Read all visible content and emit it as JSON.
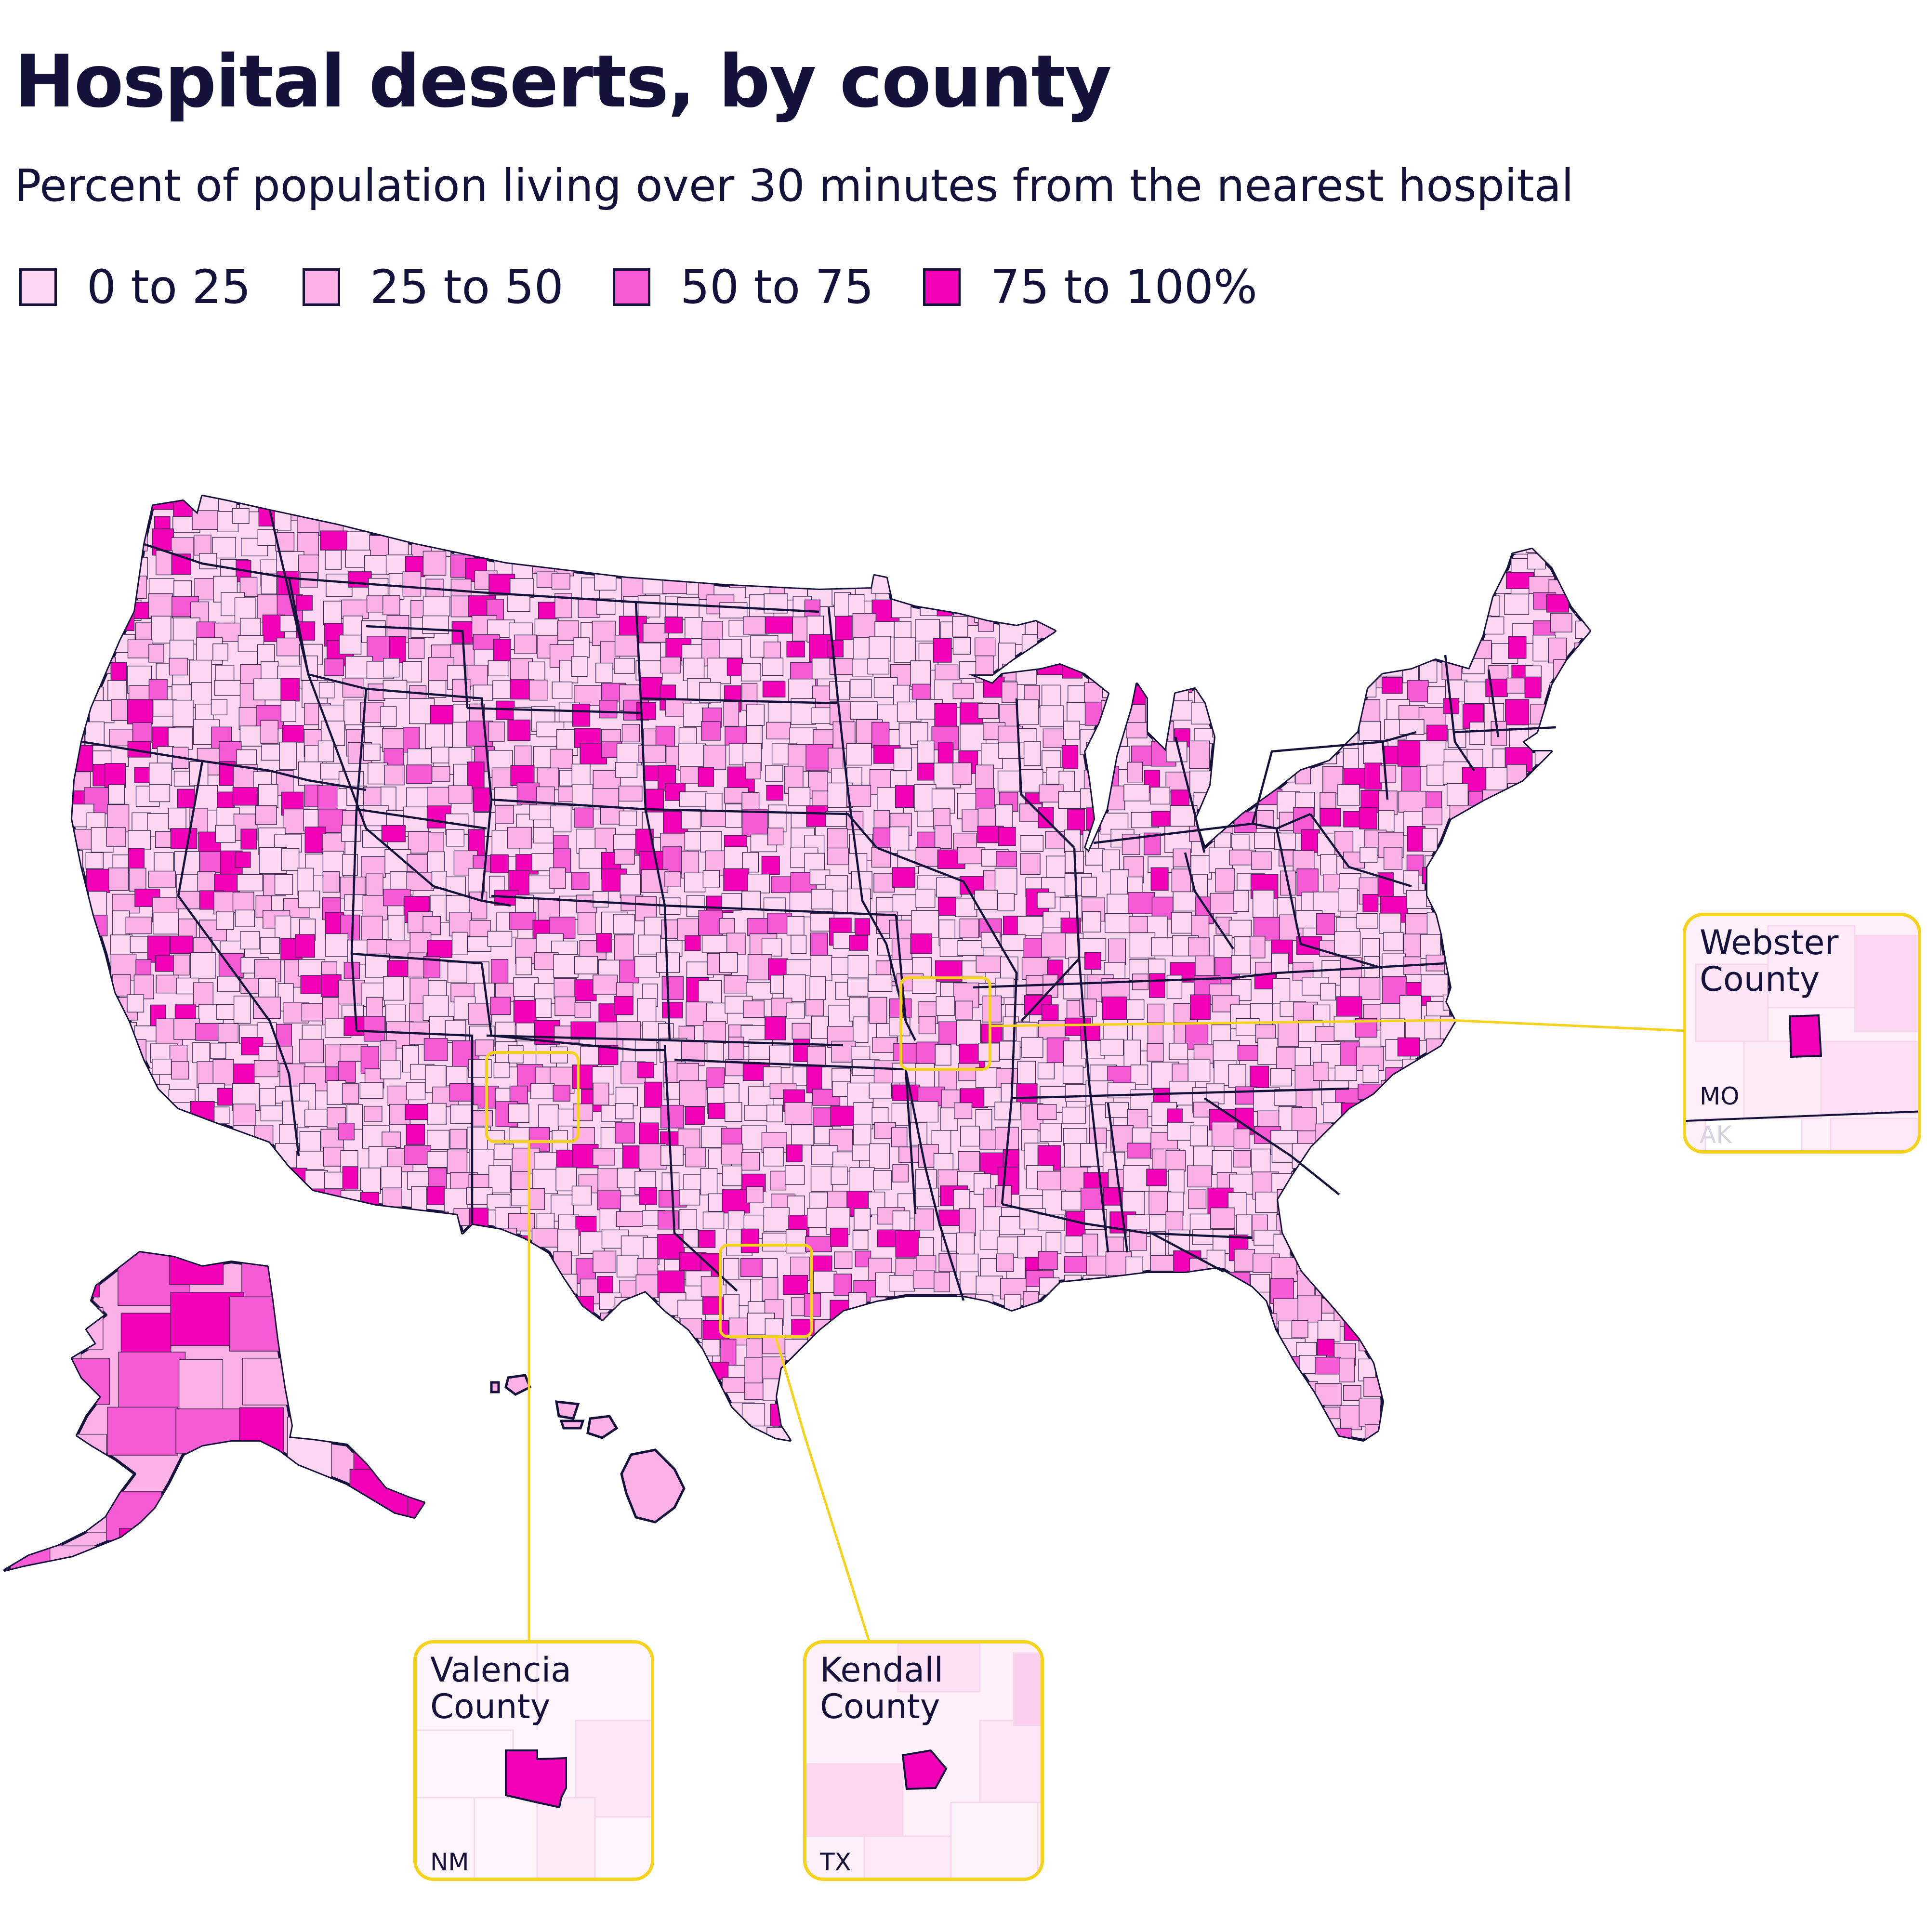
{
  "title": "Hospital deserts, by county",
  "subtitle": "Percent of population living over 30 minutes from the nearest hospital",
  "legend": [
    {
      "label": "0 to 25",
      "color": "#fdd6f2"
    },
    {
      "label": "25 to 50",
      "color": "#fbb0e6"
    },
    {
      "label": "50 to 75",
      "color": "#f45ad3"
    },
    {
      "label": "75 to 100%",
      "color": "#f100b8"
    }
  ],
  "colors": {
    "ink": "#14123a",
    "callout_border": "#f5d21c",
    "level_1": "#fdd6f2",
    "level_2": "#fbb0e6",
    "level_3": "#f45ad3",
    "level_4": "#f100b8"
  },
  "callouts": {
    "webster": {
      "name": "Webster\nCounty",
      "state": "MO",
      "neighbor_state": "AK",
      "category": "75 to 100%"
    },
    "valencia": {
      "name": "Valencia\nCounty",
      "state": "NM",
      "category": "75 to 100%"
    },
    "kendall": {
      "name": "Kendall\nCounty",
      "state": "TX",
      "category": "75 to 100%"
    }
  }
}
